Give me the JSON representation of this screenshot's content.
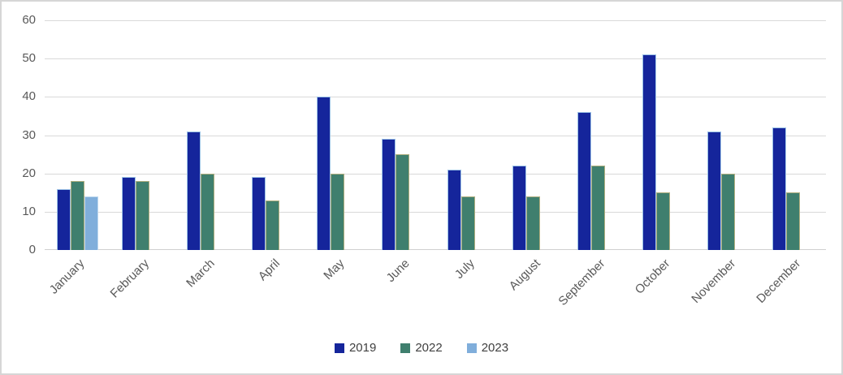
{
  "chart_data": {
    "type": "bar",
    "title": "",
    "xlabel": "",
    "ylabel": "",
    "categories": [
      "January",
      "February",
      "March",
      "April",
      "May",
      "June",
      "July",
      "August",
      "September",
      "October",
      "November",
      "December"
    ],
    "series": [
      {
        "name": "2019",
        "color": "#15259b",
        "border_color": "#9dc3e6",
        "values": [
          16,
          19,
          31,
          19,
          40,
          29,
          21,
          22,
          36,
          51,
          31,
          32
        ]
      },
      {
        "name": "2022",
        "color": "#3f7f6e",
        "border_color": "#afae7e",
        "values": [
          18,
          18,
          20,
          13,
          20,
          25,
          14,
          14,
          22,
          15,
          20,
          15
        ]
      },
      {
        "name": "2023",
        "color": "#80aedb",
        "border_color": "#bdd7ee",
        "values": [
          14,
          null,
          null,
          null,
          null,
          null,
          null,
          null,
          null,
          null,
          null,
          null
        ]
      }
    ],
    "ylim": [
      0,
      60
    ],
    "yticks": [
      0,
      10,
      20,
      30,
      40,
      50,
      60
    ],
    "grid": true,
    "legend_position": "bottom",
    "colors": {
      "gridline": "#d9d9d9",
      "axis_line": "#cfcfcf",
      "axis_text": "#595959",
      "legend_text": "#404040",
      "frame_border": "#d6d6d6",
      "background": "#ffffff"
    }
  }
}
